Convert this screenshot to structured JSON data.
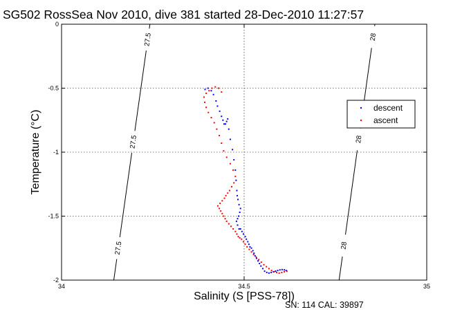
{
  "chart_data": {
    "type": "scatter",
    "title": "SG502 RossSea Nov 2010, dive 381 started 28-Dec-2010 11:27:57",
    "xlabel": "Salinity (S [PSS-78])",
    "ylabel": "Temperature (°C)",
    "xlim": [
      34,
      35
    ],
    "ylim": [
      -2,
      0
    ],
    "xticks": [
      "34",
      "34.5",
      "35"
    ],
    "yticks": [
      "0",
      "-0.5",
      "-1",
      "-1.5",
      "-2"
    ],
    "grid": true,
    "legend": {
      "placement": "right"
    },
    "footer": "SN: 114  CAL: 39897",
    "contours": [
      {
        "label": "27.5",
        "points": [
          [
            34.143,
            -2
          ],
          [
            34.242,
            0
          ]
        ],
        "label_y": [
          -0.12,
          -0.92,
          -1.75
        ]
      },
      {
        "label": "28",
        "points": [
          [
            34.76,
            -2
          ],
          [
            34.858,
            0
          ]
        ],
        "label_y": [
          -0.1,
          -0.9,
          -1.73
        ]
      }
    ],
    "series": [
      {
        "name": "descent",
        "color": "#0000ff",
        "x": [
          34.393,
          34.401,
          34.41,
          34.416,
          34.423,
          34.427,
          34.433,
          34.438,
          34.442,
          34.445,
          34.449,
          34.452,
          34.455,
          34.458,
          34.462,
          34.468,
          34.472,
          34.476,
          34.478,
          34.48,
          34.481,
          34.483,
          34.486,
          34.49,
          34.488,
          34.485,
          34.482,
          34.479,
          34.482,
          34.486,
          34.49,
          34.494,
          34.498,
          34.503,
          34.506,
          34.51,
          34.513,
          34.516,
          34.52,
          34.524,
          34.527,
          34.53,
          34.534,
          34.538,
          34.542,
          34.546,
          34.551,
          34.556,
          34.562,
          34.568,
          34.574,
          34.58,
          34.586,
          34.592,
          34.598,
          34.604,
          34.61,
          34.615
        ],
        "y": [
          -0.51,
          -0.5,
          -0.52,
          -0.55,
          -0.6,
          -0.64,
          -0.68,
          -0.72,
          -0.75,
          -0.78,
          -0.78,
          -0.76,
          -0.74,
          -0.82,
          -0.9,
          -0.98,
          -1.06,
          -1.14,
          -1.22,
          -1.3,
          -1.34,
          -1.37,
          -1.41,
          -1.44,
          -1.47,
          -1.5,
          -1.52,
          -1.54,
          -1.57,
          -1.6,
          -1.6,
          -1.62,
          -1.64,
          -1.66,
          -1.68,
          -1.7,
          -1.72,
          -1.74,
          -1.75,
          -1.77,
          -1.79,
          -1.81,
          -1.83,
          -1.85,
          -1.87,
          -1.89,
          -1.91,
          -1.93,
          -1.94,
          -1.945,
          -1.94,
          -1.935,
          -1.93,
          -1.925,
          -1.92,
          -1.918,
          -1.92,
          -1.925
        ]
      },
      {
        "name": "ascent",
        "color": "#ff0000",
        "x": [
          34.617,
          34.61,
          34.603,
          34.596,
          34.589,
          34.582,
          34.575,
          34.568,
          34.561,
          34.554,
          34.547,
          34.54,
          34.533,
          34.526,
          34.52,
          34.514,
          34.508,
          34.503,
          34.498,
          34.493,
          34.488,
          34.484,
          34.48,
          34.476,
          34.47,
          34.464,
          34.458,
          34.452,
          34.448,
          34.444,
          34.44,
          34.436,
          34.432,
          34.428,
          34.434,
          34.44,
          34.446,
          34.45,
          34.455,
          34.46,
          34.466,
          34.472,
          34.476,
          34.47,
          34.462,
          34.452,
          34.444,
          34.438,
          34.432,
          34.425,
          34.418,
          34.41,
          34.402,
          34.396,
          34.392,
          34.39,
          34.396,
          34.404,
          34.412,
          34.421,
          34.43,
          34.438
        ],
        "y": [
          -1.93,
          -1.935,
          -1.94,
          -1.945,
          -1.94,
          -1.935,
          -1.925,
          -1.91,
          -1.895,
          -1.88,
          -1.86,
          -1.84,
          -1.82,
          -1.8,
          -1.78,
          -1.76,
          -1.74,
          -1.72,
          -1.7,
          -1.68,
          -1.67,
          -1.66,
          -1.64,
          -1.62,
          -1.6,
          -1.58,
          -1.56,
          -1.54,
          -1.52,
          -1.5,
          -1.48,
          -1.46,
          -1.44,
          -1.42,
          -1.4,
          -1.38,
          -1.36,
          -1.34,
          -1.32,
          -1.3,
          -1.27,
          -1.24,
          -1.19,
          -1.14,
          -1.09,
          -1.04,
          -0.99,
          -0.93,
          -0.87,
          -0.82,
          -0.77,
          -0.73,
          -0.69,
          -0.65,
          -0.61,
          -0.57,
          -0.54,
          -0.52,
          -0.5,
          -0.49,
          -0.5,
          -0.53
        ]
      }
    ]
  }
}
